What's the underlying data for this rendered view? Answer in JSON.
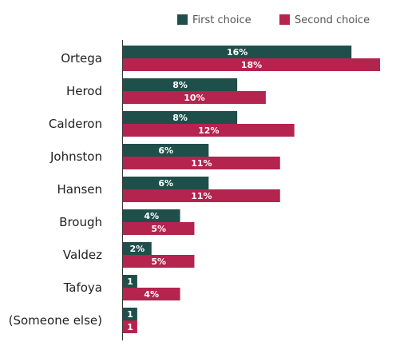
{
  "chart_data": {
    "type": "bar",
    "orientation": "horizontal",
    "categories": [
      "Ortega",
      "Herod",
      "Calderon",
      "Johnston",
      "Hansen",
      "Brough",
      "Valdez",
      "Tafoya",
      "(Someone else)"
    ],
    "series": [
      {
        "name": "First choice",
        "values": [
          16,
          8,
          8,
          6,
          6,
          4,
          2,
          1,
          1
        ],
        "labels": [
          "16%",
          "8%",
          "8%",
          "6%",
          "6%",
          "4%",
          "2%",
          "1",
          "1"
        ],
        "color": "#1f4f4b"
      },
      {
        "name": "Second choice",
        "values": [
          18,
          10,
          12,
          11,
          11,
          5,
          5,
          4,
          1
        ],
        "labels": [
          "18%",
          "10%",
          "12%",
          "11%",
          "11%",
          "5%",
          "5%",
          "4%",
          "1"
        ],
        "color": "#b5234f"
      }
    ],
    "xlim": [
      0,
      18
    ],
    "legend_position": "top-right",
    "grid": false
  }
}
